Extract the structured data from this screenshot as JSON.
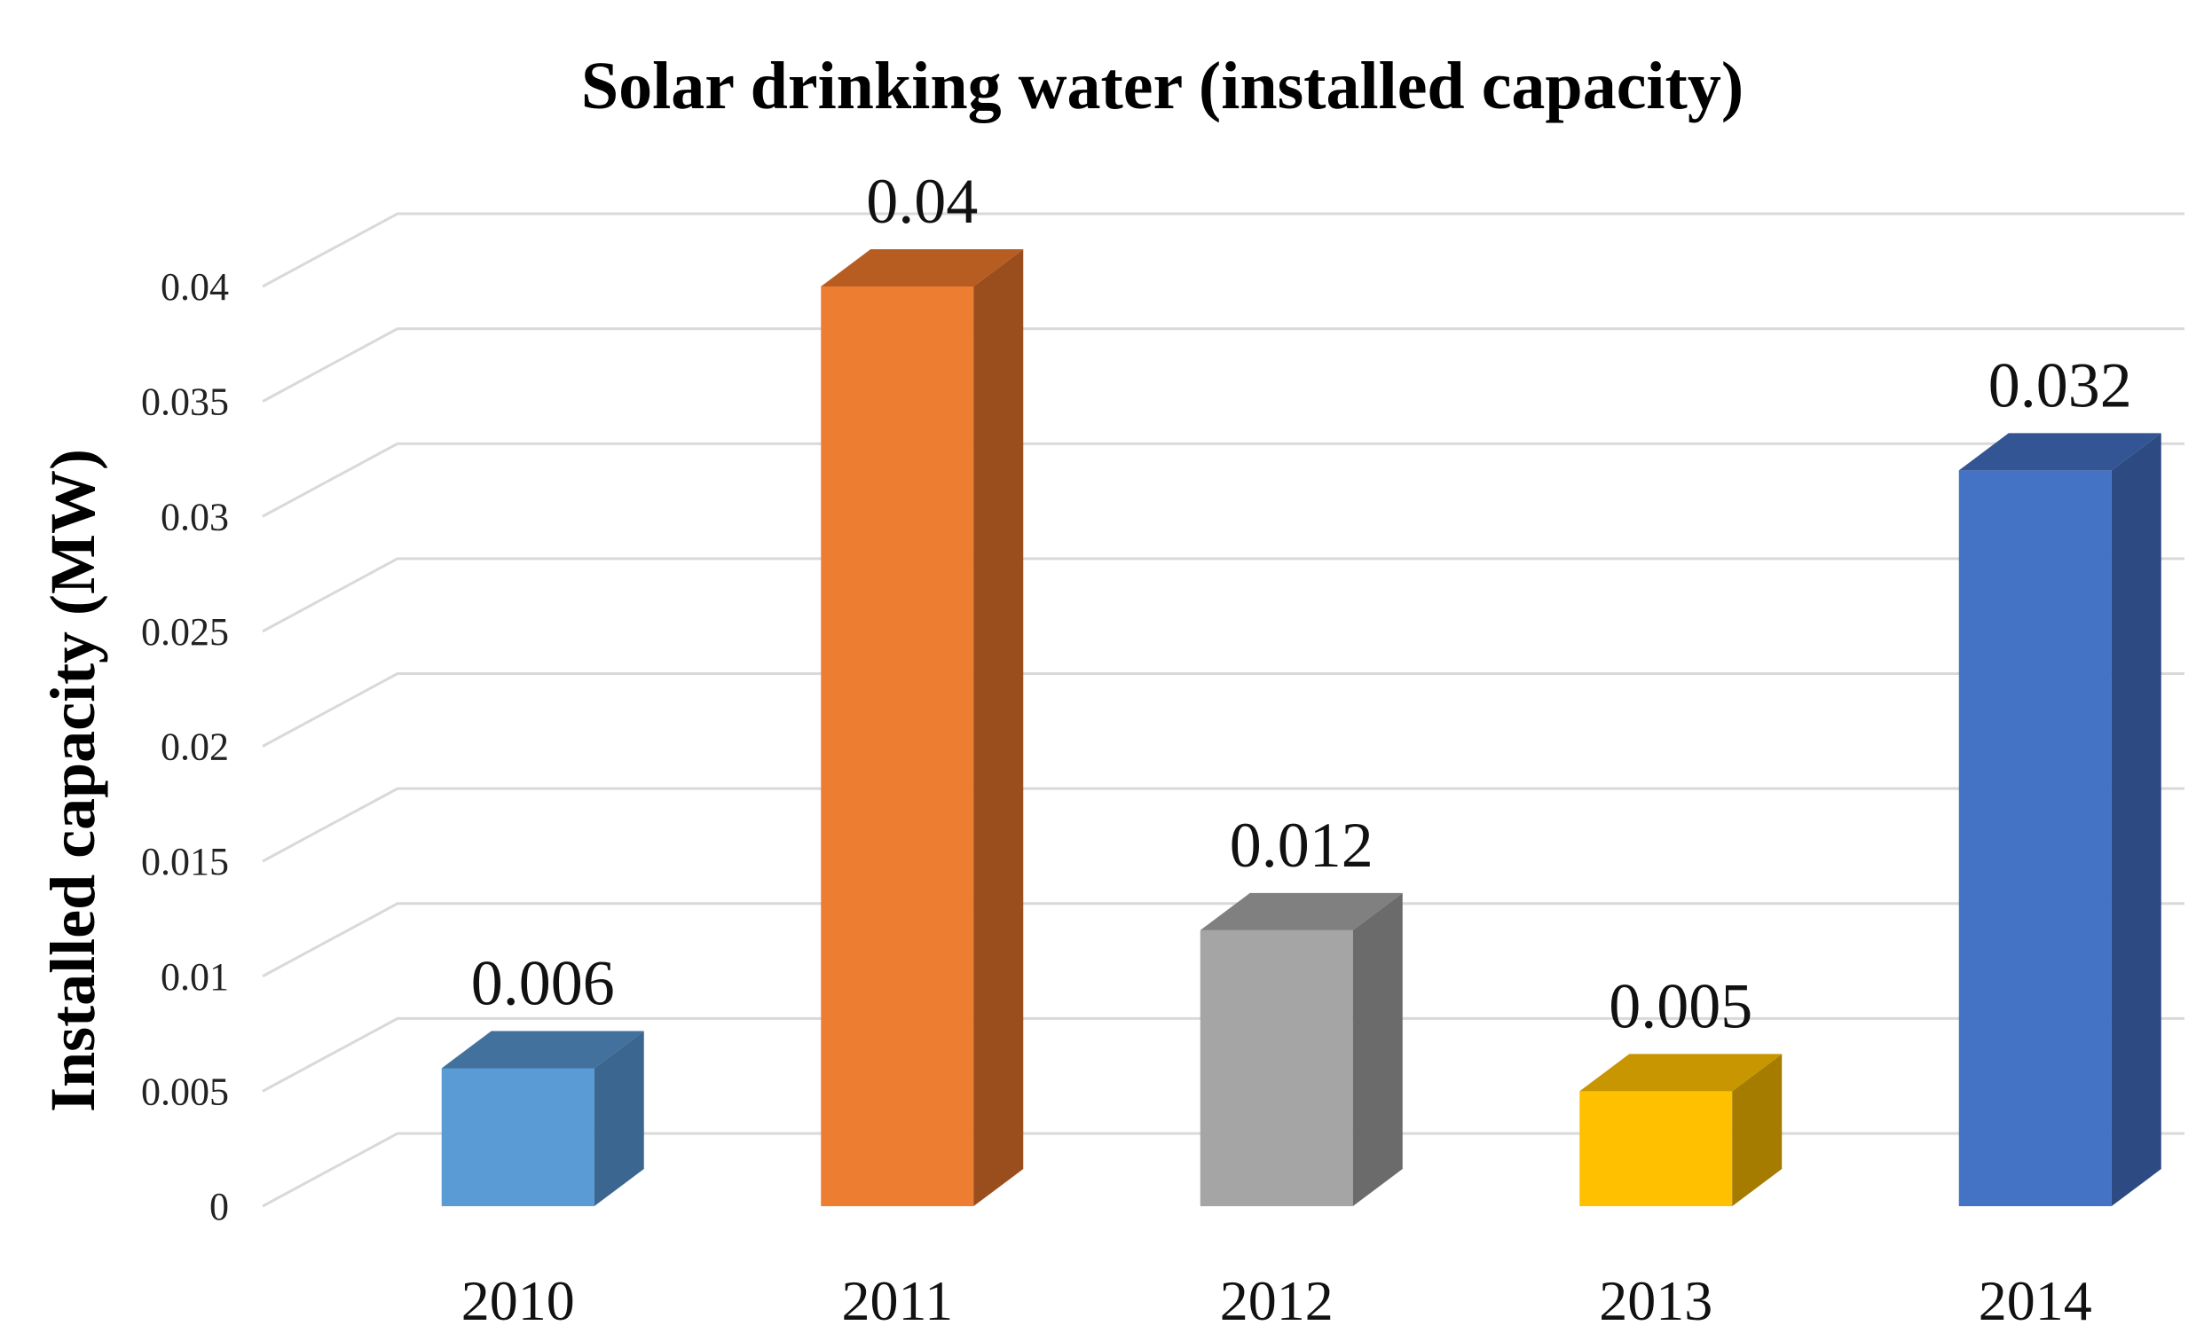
{
  "chart_data": {
    "type": "bar",
    "title": "Solar drinking water (installed capacity)",
    "xlabel": "",
    "ylabel": "Installed capacity (MW)",
    "categories": [
      "2010",
      "2011",
      "2012",
      "2013",
      "2014"
    ],
    "values": [
      0.006,
      0.04,
      0.012,
      0.005,
      0.032
    ],
    "data_labels": [
      "0.006",
      "0.04",
      "0.012",
      "0.005",
      "0.032"
    ],
    "ylim": [
      0,
      0.04
    ],
    "yticks": [
      0,
      0.005,
      0.01,
      0.015,
      0.02,
      0.025,
      0.03,
      0.035,
      0.04
    ],
    "ytick_labels": [
      "0",
      "0.005",
      "0.01",
      "0.015",
      "0.02",
      "0.025",
      "0.03",
      "0.035",
      "0.04"
    ],
    "grid": true,
    "style": "3d-column",
    "colors": [
      {
        "front": "#5b9bd5",
        "side": "#3a6690",
        "top": "#41719c"
      },
      {
        "front": "#ed7d31",
        "side": "#9a4d1d",
        "top": "#b85d22"
      },
      {
        "front": "#a5a5a5",
        "side": "#6b6b6b",
        "top": "#808080"
      },
      {
        "front": "#ffc000",
        "side": "#a67c00",
        "top": "#c79600"
      },
      {
        "front": "#4472c4",
        "side": "#2d4b82",
        "top": "#345593"
      }
    ]
  }
}
